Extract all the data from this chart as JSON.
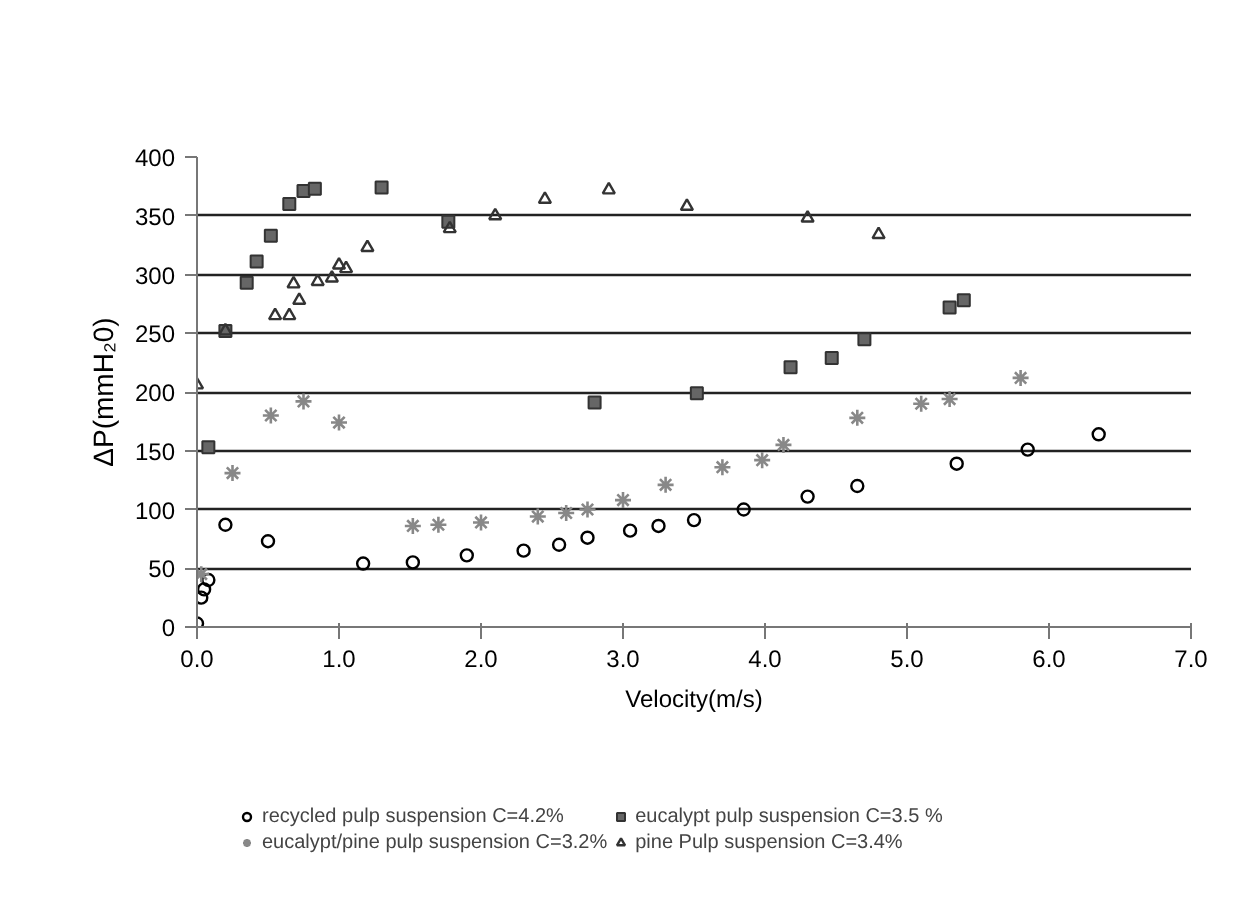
{
  "chart_data": {
    "type": "scatter",
    "xlabel": "Velocity(m/s)",
    "ylabel": "ΔP(mmH₂0)",
    "xlim": [
      0,
      7
    ],
    "xticks": [
      {
        "value": 0,
        "label": "0.0"
      },
      {
        "value": 1,
        "label": "1.0"
      },
      {
        "value": 2,
        "label": "2.0"
      },
      {
        "value": 3,
        "label": "3.0"
      },
      {
        "value": 4,
        "label": "4.0"
      },
      {
        "value": 5,
        "label": "5.0"
      },
      {
        "value": 6,
        "label": "6.0"
      },
      {
        "value": 7,
        "label": "7.0"
      }
    ],
    "ylim": [
      0,
      400
    ],
    "yticks": [
      0,
      50,
      100,
      150,
      200,
      250,
      300,
      350,
      400
    ],
    "grid": "y",
    "legend": "bottom",
    "series": [
      {
        "name": "recycled pulp suspension C=4.2%",
        "color": "#000000",
        "marker": "circle",
        "x": [
          0.0,
          0.03,
          0.05,
          0.08,
          0.2,
          0.5,
          1.17,
          1.52,
          1.9,
          2.3,
          2.55,
          2.75,
          3.05,
          3.25,
          3.5,
          3.85,
          4.3,
          4.65,
          5.35,
          5.85,
          6.35
        ],
        "values": [
          3,
          25,
          32,
          40,
          87,
          73,
          54,
          55,
          61,
          65,
          70,
          76,
          82,
          86,
          91,
          100,
          111,
          120,
          139,
          151,
          164
        ]
      },
      {
        "name": "eucalypt pulp suspension C=3.5 %",
        "color": "#666666",
        "marker": "square",
        "x": [
          0.08,
          0.2,
          0.35,
          0.42,
          0.52,
          0.65,
          0.75,
          0.83,
          1.3,
          1.77,
          2.8,
          3.52,
          4.18,
          4.47,
          4.7,
          5.3,
          5.4
        ],
        "values": [
          153,
          252,
          293,
          311,
          333,
          360,
          371,
          373,
          374,
          345,
          191,
          199,
          221,
          229,
          245,
          272,
          278
        ]
      },
      {
        "name": "eucalypt/pine pulp suspension C=3.2%",
        "color": "#888888",
        "marker": "cross",
        "x": [
          0.03,
          0.25,
          0.52,
          0.75,
          1.0,
          1.52,
          1.7,
          2.0,
          2.4,
          2.6,
          2.75,
          3.0,
          3.3,
          3.7,
          3.98,
          4.13,
          4.65,
          5.1,
          5.3,
          5.8
        ],
        "values": [
          45,
          131,
          180,
          192,
          174,
          86,
          87,
          89,
          94,
          97,
          100,
          108,
          121,
          136,
          142,
          155,
          178,
          190,
          194,
          212
        ]
      },
      {
        "name": "pine Pulp suspension C=3.4%",
        "color": "#333333",
        "marker": "triangle",
        "x": [
          0.0,
          0.2,
          0.55,
          0.65,
          0.68,
          0.72,
          0.85,
          0.95,
          1.0,
          1.05,
          1.2,
          1.78,
          2.1,
          2.45,
          2.9,
          3.45,
          4.3,
          4.8
        ],
        "values": [
          206,
          252,
          265,
          265,
          292,
          278,
          294,
          297,
          308,
          305,
          323,
          339,
          350,
          364,
          372,
          358,
          348,
          334
        ]
      }
    ]
  }
}
